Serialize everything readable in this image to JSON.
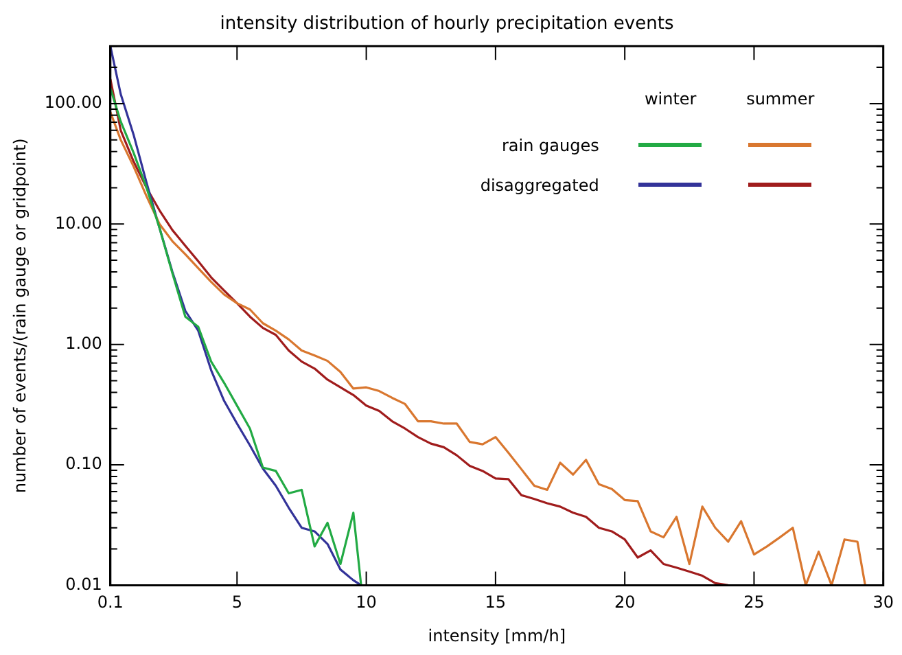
{
  "chart_data": {
    "type": "line",
    "title": "intensity distribution of hourly precipitation events",
    "xlabel": "intensity [mm/h]",
    "ylabel": "number of events/(rain gauge or gridpoint)",
    "log": "y",
    "grid": false,
    "xlim": [
      0.1,
      30
    ],
    "xticks": [
      0.1,
      5,
      10,
      15,
      20,
      25,
      30
    ],
    "ylim": [
      0.01,
      300
    ],
    "yticks": [
      {
        "value": 0.01,
        "label": "0.01"
      },
      {
        "value": 0.02,
        "label": null
      },
      {
        "value": 0.03,
        "label": null
      },
      {
        "value": 0.04,
        "label": null
      },
      {
        "value": 0.05,
        "label": null
      },
      {
        "value": 0.06,
        "label": null
      },
      {
        "value": 0.07,
        "label": null
      },
      {
        "value": 0.08,
        "label": null
      },
      {
        "value": 0.09,
        "label": null
      },
      {
        "value": 0.1,
        "label": "0.10"
      },
      {
        "value": 0.2,
        "label": null
      },
      {
        "value": 0.3,
        "label": null
      },
      {
        "value": 0.4,
        "label": null
      },
      {
        "value": 0.5,
        "label": null
      },
      {
        "value": 0.6,
        "label": null
      },
      {
        "value": 0.7,
        "label": null
      },
      {
        "value": 0.8,
        "label": null
      },
      {
        "value": 0.9,
        "label": null
      },
      {
        "value": 1,
        "label": "1.00"
      },
      {
        "value": 2,
        "label": null
      },
      {
        "value": 3,
        "label": null
      },
      {
        "value": 4,
        "label": null
      },
      {
        "value": 5,
        "label": null
      },
      {
        "value": 6,
        "label": null
      },
      {
        "value": 7,
        "label": null
      },
      {
        "value": 8,
        "label": null
      },
      {
        "value": 9,
        "label": null
      },
      {
        "value": 10,
        "label": "10.00"
      },
      {
        "value": 20,
        "label": null
      },
      {
        "value": 30,
        "label": null
      },
      {
        "value": 40,
        "label": null
      },
      {
        "value": 50,
        "label": null
      },
      {
        "value": 60,
        "label": null
      },
      {
        "value": 70,
        "label": null
      },
      {
        "value": 80,
        "label": null
      },
      {
        "value": 90,
        "label": null
      },
      {
        "value": 100,
        "label": "100.00"
      },
      {
        "value": 200,
        "label": null
      },
      {
        "value": 300,
        "label": null
      }
    ],
    "annotations": [
      "winter",
      "summer",
      "rain gauges",
      "disaggregated"
    ],
    "series": [
      {
        "color": "#22aa44",
        "x": [
          0.1,
          0.5,
          1,
          1.5,
          2,
          2.5,
          3,
          3.5,
          4,
          4.5,
          5,
          5.5,
          6,
          6.5,
          7,
          7.5,
          8,
          8.5,
          9,
          9.5,
          9.8
        ],
        "values": [
          134,
          71,
          39,
          20,
          9.3,
          3.9,
          1.7,
          1.4,
          0.72,
          0.48,
          0.31,
          0.2,
          0.095,
          0.089,
          0.058,
          0.062,
          0.021,
          0.033,
          0.015,
          0.04,
          0.01
        ]
      },
      {
        "color": "#d9772f",
        "x": [
          0.1,
          0.5,
          1,
          1.5,
          2,
          2.5,
          3,
          3.5,
          4,
          4.5,
          5,
          5.5,
          6,
          6.5,
          7,
          7.5,
          8,
          8.5,
          9,
          9.5,
          10,
          10.5,
          11,
          11.5,
          12,
          12.5,
          13,
          13.5,
          14,
          14.5,
          15,
          15.5,
          16,
          16.5,
          17,
          17.5,
          18,
          18.5,
          19,
          19.5,
          20,
          20.5,
          21,
          21.5,
          22,
          22.5,
          23,
          23.5,
          24,
          24.5,
          25,
          25.5,
          26,
          26.5,
          27,
          27.5,
          28,
          28.5,
          29,
          29.3
        ],
        "values": [
          85,
          50,
          30,
          17,
          10,
          7.2,
          5.6,
          4.3,
          3.3,
          2.6,
          2.2,
          1.95,
          1.5,
          1.3,
          1.1,
          0.89,
          0.81,
          0.73,
          0.59,
          0.43,
          0.44,
          0.41,
          0.36,
          0.32,
          0.23,
          0.23,
          0.22,
          0.22,
          0.155,
          0.148,
          0.17,
          0.126,
          0.092,
          0.067,
          0.062,
          0.104,
          0.083,
          0.11,
          0.069,
          0.063,
          0.051,
          0.05,
          0.028,
          0.025,
          0.037,
          0.015,
          0.045,
          0.03,
          0.023,
          0.034,
          0.018,
          0.021,
          0.025,
          0.03,
          0.01,
          0.019,
          0.01,
          0.024,
          0.023,
          0.01
        ]
      },
      {
        "color": "#333399",
        "x": [
          0.1,
          0.5,
          1,
          1.5,
          2,
          2.5,
          3,
          3.5,
          4,
          4.5,
          5,
          5.5,
          6,
          6.5,
          7,
          7.5,
          8,
          8.5,
          9,
          9.5,
          9.8
        ],
        "values": [
          300,
          120,
          55,
          22,
          9.3,
          4,
          1.9,
          1.3,
          0.61,
          0.34,
          0.22,
          0.145,
          0.093,
          0.067,
          0.044,
          0.03,
          0.028,
          0.022,
          0.0135,
          0.011,
          0.01
        ]
      },
      {
        "color": "#a01c1c",
        "x": [
          0.1,
          0.5,
          1,
          1.5,
          2,
          2.5,
          3,
          3.5,
          4,
          4.5,
          5,
          5.5,
          6,
          6.5,
          7,
          7.5,
          8,
          8.5,
          9,
          9.5,
          10,
          10.5,
          11,
          11.5,
          12,
          12.5,
          13,
          13.5,
          14,
          14.5,
          15,
          15.5,
          16,
          16.5,
          17,
          17.5,
          18,
          18.5,
          19,
          19.5,
          20,
          20.5,
          21,
          21.5,
          22,
          22.5,
          23,
          23.5,
          24
        ],
        "values": [
          160,
          60,
          33,
          20,
          13,
          8.9,
          6.6,
          4.9,
          3.6,
          2.8,
          2.2,
          1.7,
          1.37,
          1.2,
          0.89,
          0.72,
          0.63,
          0.51,
          0.44,
          0.38,
          0.31,
          0.28,
          0.23,
          0.2,
          0.17,
          0.15,
          0.14,
          0.12,
          0.098,
          0.089,
          0.077,
          0.076,
          0.056,
          0.052,
          0.048,
          0.045,
          0.04,
          0.037,
          0.03,
          0.028,
          0.024,
          0.017,
          0.0195,
          0.015,
          0.014,
          0.013,
          0.012,
          0.0104,
          0.01
        ]
      }
    ]
  }
}
